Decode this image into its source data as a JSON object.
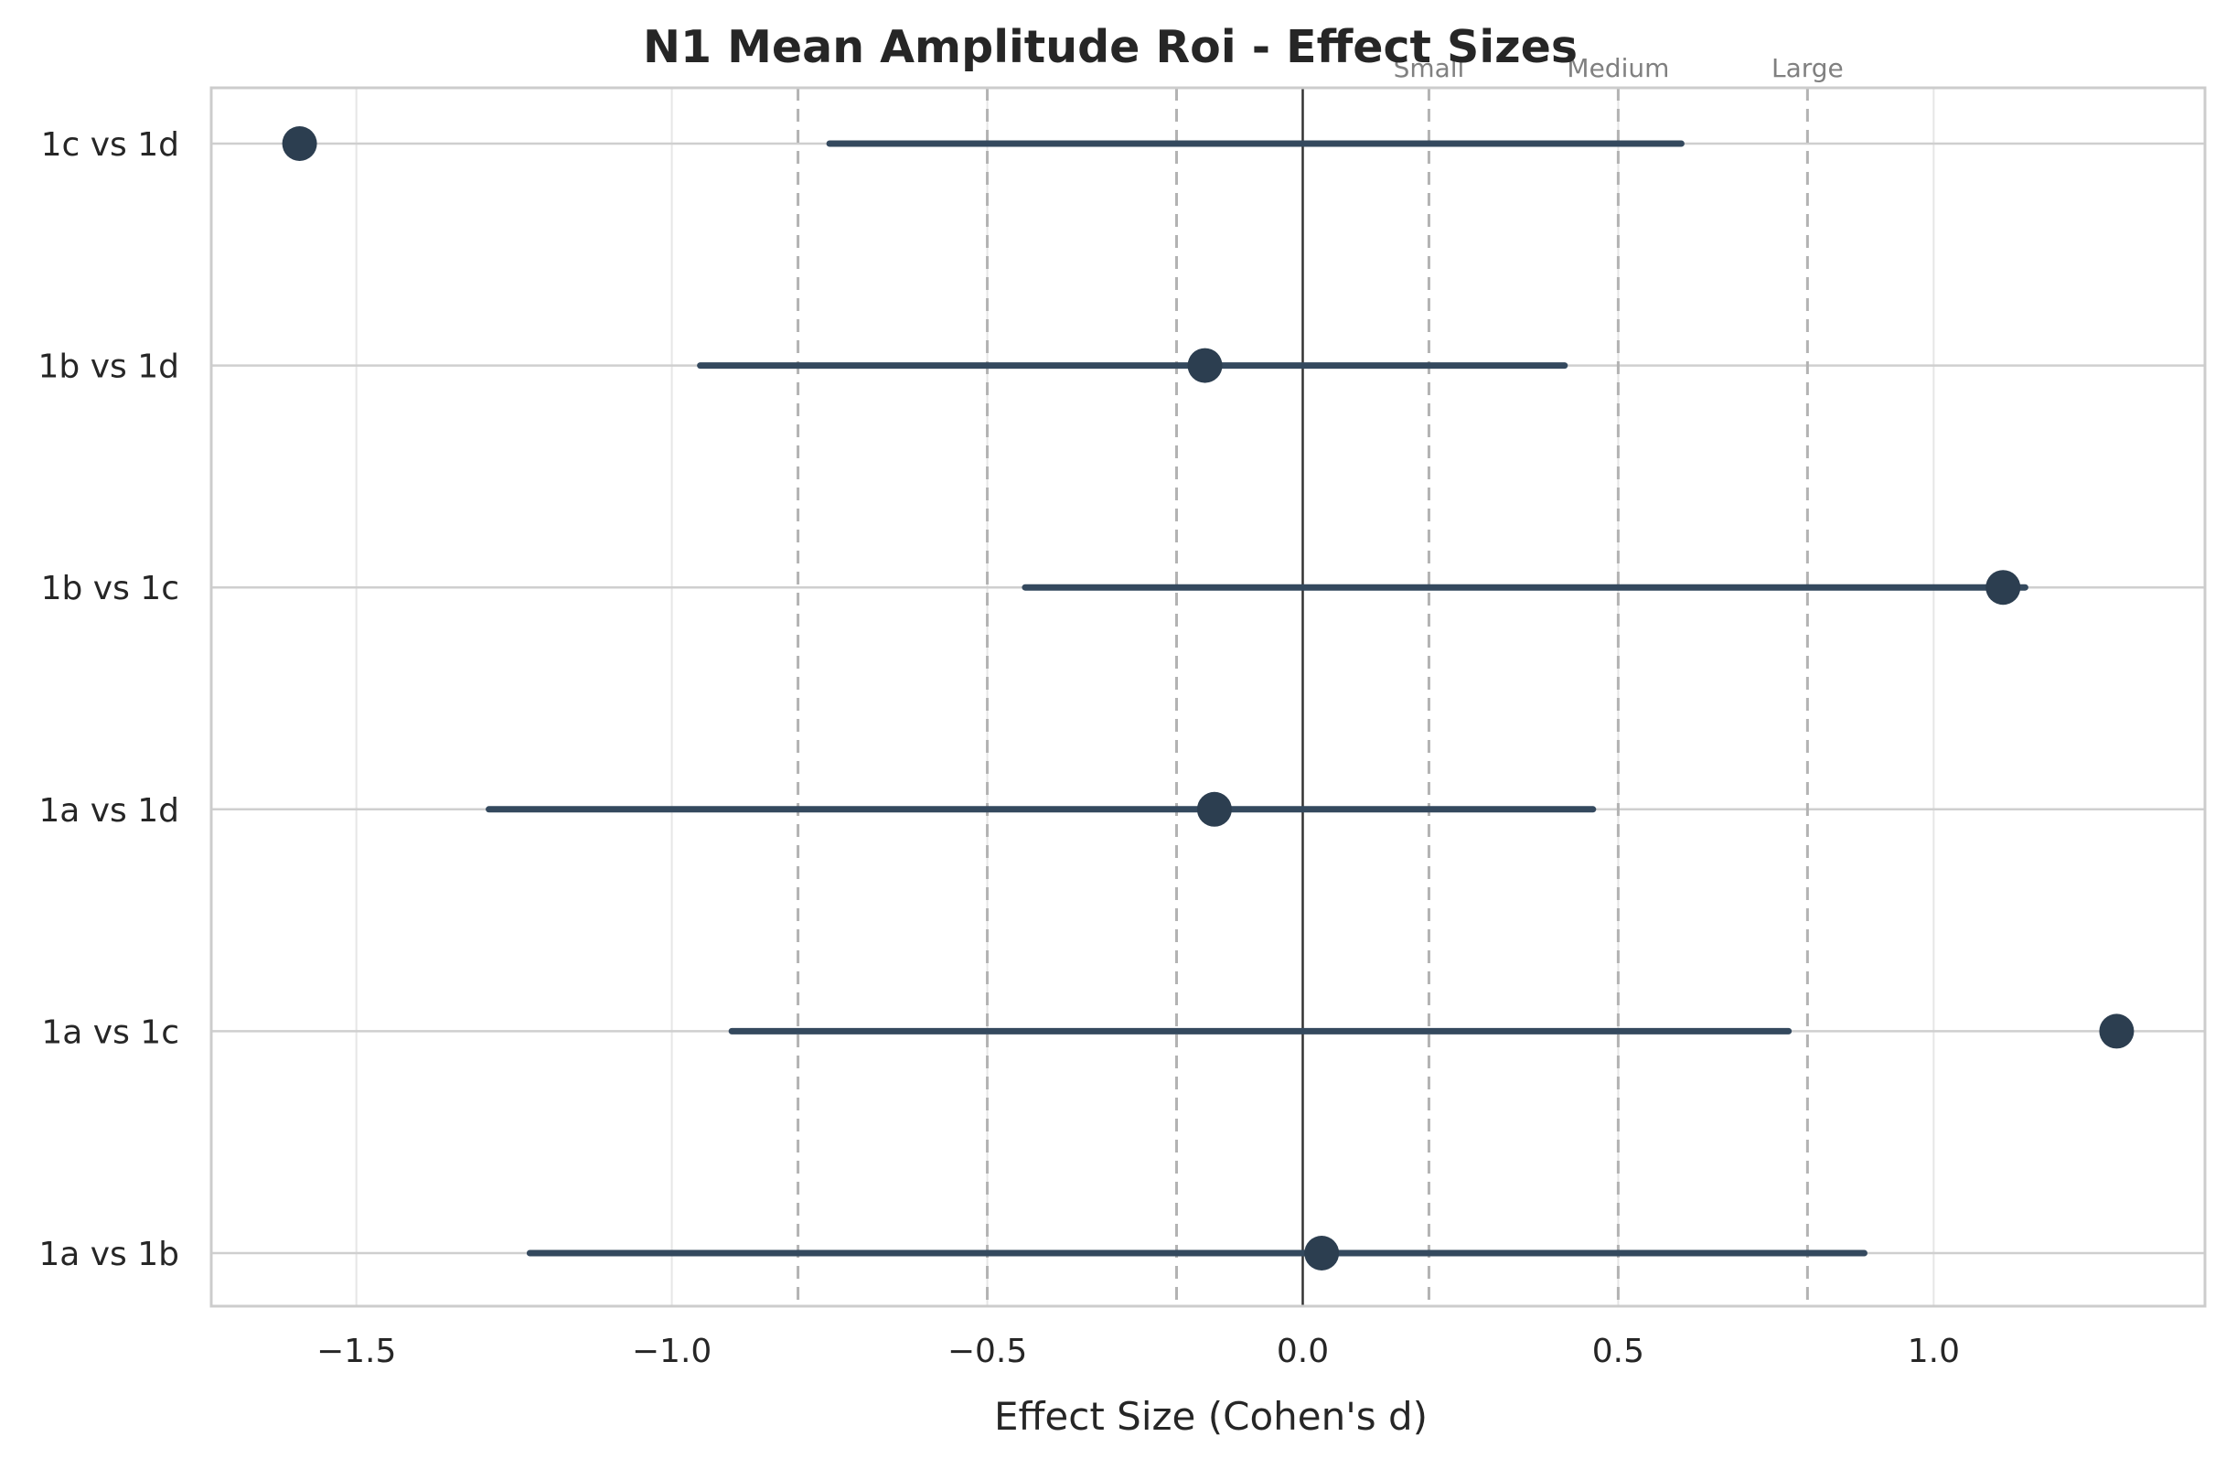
{
  "chart_data": {
    "type": "scatter",
    "title": "N1 Mean Amplitude Roi - Effect Sizes",
    "xlabel": "Effect Size (Cohen's d)",
    "ylabel": "",
    "xlim": [
      -1.73,
      1.43
    ],
    "x_ticks": [
      -1.5,
      -1.0,
      -0.5,
      0.0,
      0.5,
      1.0
    ],
    "x_tick_labels": [
      "−1.5",
      "−1.0",
      "−0.5",
      "0.0",
      "0.5",
      "1.0"
    ],
    "grid": true,
    "categories": [
      "1c vs 1d",
      "1b vs 1d",
      "1b vs 1c",
      "1a vs 1d",
      "1a vs 1c",
      "1a vs 1b"
    ],
    "series": [
      {
        "effect_size": [
          -1.59,
          -0.155,
          1.11,
          -0.14,
          1.29,
          0.03
        ],
        "ci_low": [
          -0.75,
          -0.955,
          -0.44,
          -1.29,
          -0.905,
          -1.225
        ],
        "ci_high": [
          0.6,
          0.415,
          1.145,
          0.46,
          0.77,
          0.89
        ]
      }
    ],
    "reference_line": 0.0,
    "thresholds": [
      {
        "label": "Small",
        "values": [
          -0.2,
          0.2
        ]
      },
      {
        "label": "Medium",
        "values": [
          -0.5,
          0.5
        ]
      },
      {
        "label": "Large",
        "values": [
          -0.8,
          0.8
        ]
      }
    ],
    "colors": {
      "marker": "#2c3e50",
      "interval": "#34495e",
      "threshold": "#b3b3b3",
      "grid": "#e6e6e6",
      "category_grid": "#cfcfcf",
      "zero_line": "#333333",
      "frame": "#cccccc"
    }
  }
}
